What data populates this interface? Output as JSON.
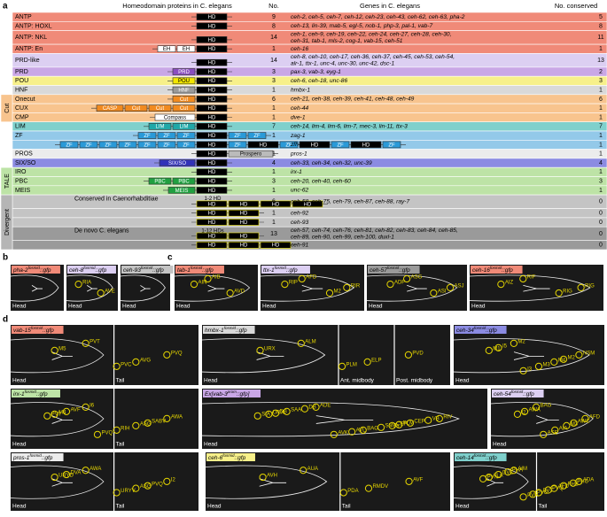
{
  "panel_a": {
    "label": "a",
    "header": {
      "proteins": "Homeodomain proteins in C. elegans",
      "no": "No.",
      "genes": "Genes in C. elegans",
      "conserved": "No. conserved"
    },
    "rows": [
      {
        "name": "ANTP",
        "no": "9",
        "genes": [
          "ceh-2, ceh-5, ceh-7, ceh-12, ceh-23, ceh-43, ceh-62, ceh-63, pha-2"
        ],
        "conserved": "5",
        "domains": [
          "HD"
        ],
        "color": "#f08a78",
        "domain_color": "#000"
      },
      {
        "name": "ANTP: HOXL",
        "no": "8",
        "genes": [
          "ceh-13, lin-39, mab-5, egl-5, nob-1, php-3, pal-1, vab-7"
        ],
        "conserved": "8",
        "domains": [
          "HD"
        ],
        "color": "#f08a78",
        "domain_color": "#000"
      },
      {
        "name": "ANTP: NKL",
        "no": "14",
        "genes": [
          "ceh-1, ceh-9, ceh-19, ceh-22, ceh-24, ceh-27, ceh-28, ceh-30,",
          "ceh-31, tab-1, mls-2, cog-1, vab-15, ceh-51"
        ],
        "conserved": "11",
        "domains": [
          "HD"
        ],
        "color": "#f08a78",
        "domain_color": "#000"
      },
      {
        "name": "ANTP: En",
        "no": "1",
        "genes": [
          "ceh-16"
        ],
        "conserved": "1",
        "domains": [
          "EH",
          "EH",
          "HD"
        ],
        "color": "#f08a78",
        "domain_color": "#fff"
      },
      {
        "name": "PRD-like",
        "no": "14",
        "genes": [
          "ceh-8, ceh-10, ceh-17, ceh-36, ceh-37, ceh-45, ceh-53, ceh-54,",
          "alr-1, ttx-1, unc-4, unc-30, unc-42, dsc-1"
        ],
        "conserved": "13",
        "domains": [
          "HD"
        ],
        "color": "#dccff2",
        "domain_color": "#000"
      },
      {
        "name": "PRD",
        "no": "3",
        "genes": [
          "pax-3, vab-3, eyg-1"
        ],
        "conserved": "2",
        "domains": [
          "PRD",
          "HD"
        ],
        "color": "#c9a7e6",
        "domain_color": "#8a4fc0"
      },
      {
        "name": "POU",
        "no": "3",
        "genes": [
          "ceh-6, ceh-18, unc-86"
        ],
        "conserved": "3",
        "domains": [
          "POU",
          "HD"
        ],
        "color": "#f7f08a",
        "domain_color": "#f2e600"
      },
      {
        "name": "HNF",
        "no": "1",
        "genes": [
          "hmbx-1"
        ],
        "conserved": "1",
        "domains": [
          "HNF",
          "HD"
        ],
        "color": "#d9d9d9",
        "domain_color": "#9a9a9a"
      },
      {
        "group": "Cut",
        "color": "#f8c48e",
        "rows": [
          {
            "name": "Onecut",
            "no": "6",
            "genes": [
              "ceh-21, ceh-38, ceh-39, ceh-41, ceh-48, ceh-49"
            ],
            "conserved": "6",
            "domains": [
              "Cut",
              "HD"
            ],
            "color": "#f8c48e",
            "domain_color": "#f08a20"
          },
          {
            "name": "CUX",
            "no": "1",
            "genes": [
              "ceh-44"
            ],
            "conserved": "1",
            "domains": [
              "CASP",
              "Cut",
              "Cut",
              "Cut",
              "HD"
            ],
            "color": "#f8c48e",
            "domain_color": "#f08a20"
          },
          {
            "name": "CMP",
            "no": "1",
            "genes": [
              "dve-1"
            ],
            "conserved": "1",
            "domains": [
              "Compass",
              "HD"
            ],
            "color": "#f8c48e",
            "domain_color": "#fff"
          }
        ]
      },
      {
        "name": "LIM",
        "no": "7",
        "genes": [
          "ceh-14, lim-4, lim-6, lim-7, mec-3, lin-11, ttx-3"
        ],
        "conserved": "7",
        "domains": [
          "LIM",
          "LIM",
          "HD"
        ],
        "color": "#7fd0cc",
        "domain_color": "#20a8a8"
      },
      {
        "name": "ZF",
        "no": "1",
        "genes": [
          "zag-1"
        ],
        "conserved": "1",
        "domains": [
          "ZF",
          "ZF",
          "ZF",
          "HD",
          "ZF",
          "ZF"
        ],
        "color": "#93c9e9",
        "domain_color": "#2a9ad8"
      },
      {
        "no": "1",
        "genes": [
          "zfh-2"
        ],
        "conserved": "1",
        "domains": [
          "ZF",
          "ZF",
          "ZF",
          "ZF",
          "ZF",
          "ZF",
          "ZF",
          "HD",
          "ZF",
          "HD",
          "ZF",
          "HD",
          "ZF",
          "HD",
          "ZF"
        ],
        "color": "#93c9e9",
        "domain_color": "#2a9ad8"
      },
      {
        "name": "PROS",
        "no": "1",
        "genes": [
          "pros-1"
        ],
        "conserved": "1",
        "domains": [
          "HD",
          "Prospero"
        ],
        "color": "#ececec",
        "domain_color": "#bbb"
      },
      {
        "name": "SIX/SO",
        "no": "4",
        "genes": [
          "ceh-33, ceh-34, ceh-32, unc-39"
        ],
        "conserved": "4",
        "domains": [
          "SIX/SO",
          "HD"
        ],
        "color": "#8b8be2",
        "domain_color": "#3232b8"
      },
      {
        "group": "TALE",
        "color": "#bde3a6",
        "rows": [
          {
            "name": "IRO",
            "no": "1",
            "genes": [
              "irx-1"
            ],
            "conserved": "1",
            "domains": [
              "HD"
            ],
            "color": "#bde3a6",
            "domain_color": "#000"
          },
          {
            "name": "PBC",
            "no": "3",
            "genes": [
              "ceh-20, ceh-40, ceh-60"
            ],
            "conserved": "3",
            "domains": [
              "PBC",
              "PBC",
              "HD"
            ],
            "color": "#bde3a6",
            "domain_color": "#20a040"
          },
          {
            "name": "MEIS",
            "no": "1",
            "genes": [
              "unc-62"
            ],
            "conserved": "1",
            "domains": [
              "MEIS",
              "HD"
            ],
            "color": "#bde3a6",
            "domain_color": "#20a040"
          }
        ]
      },
      {
        "group": "Divergent",
        "color": "#b5b5b5",
        "rows": [
          {
            "name": "Conserved in Caenorhabditiae",
            "note": "1-2 HD",
            "no": "6",
            "genes": [
              "ceh-58, ceh-75, ceh-79, ceh-87, ceh-88, ray-7"
            ],
            "conserved": "0",
            "domains": [
              "HD",
              "HD",
              "HD",
              "HD"
            ],
            "color": "#c4c4c4",
            "domain_color": "#000"
          },
          {
            "no": "1",
            "genes": [
              "ceh-92"
            ],
            "conserved": "0",
            "domains": [
              "HD",
              "HD"
            ],
            "color": "#c4c4c4",
            "domain_color": "#000"
          },
          {
            "no": "1",
            "genes": [
              "ceh-93"
            ],
            "conserved": "0",
            "domains": [
              "HD",
              "HD"
            ],
            "color": "#c4c4c4",
            "domain_color": "#000"
          },
          {
            "name": "De novo C. elegans",
            "note": "1-12 HDs",
            "no": "13",
            "genes": [
              "ceh-57, ceh-74, ceh-76, ceh-81, ceh-82, ceh-83, ceh-84, ceh-85,",
              "ceh-89, ceh-90, ceh-99, ceh-100, duxl-1"
            ],
            "conserved": "0",
            "domains": [
              "HD",
              "HD"
            ],
            "color": "#9a9a9a",
            "domain_color": "#000"
          },
          {
            "no": "1",
            "genes": [
              "ceh-91"
            ],
            "conserved": "0",
            "domains": [
              "HD",
              "HD",
              "HD"
            ],
            "color": "#9a9a9a",
            "domain_color": "#000"
          }
        ]
      }
    ]
  },
  "panels": [
    {
      "label": "b",
      "images": [
        {
          "gene": "pha-2",
          "sup": "fosmid",
          "suffix": "::gfp",
          "color": "#f08a78",
          "labels": [],
          "regions": [
            "Head"
          ]
        },
        {
          "gene": "ceh-8",
          "sup": "fosmid",
          "suffix": "::gfp",
          "color": "#dccff2",
          "labels": [
            "RIA",
            "AVE"
          ],
          "regions": [
            "Head"
          ]
        },
        {
          "gene": "ceh-93",
          "sup": "fosmid",
          "suffix": "::gfp",
          "color": "#c4c4c4",
          "labels": [],
          "regions": [
            "Head"
          ]
        }
      ]
    },
    {
      "label": "c",
      "images": [
        {
          "gene": "tab-1",
          "sup": "fosmid",
          "suffix": "::gfp",
          "color": "#f08a78",
          "labels": [
            "AIN",
            "AVD",
            "AIB"
          ],
          "regions": [
            "Head"
          ]
        },
        {
          "gene": "ttx-1",
          "sup": "fosmid",
          "suffix": "::gfp",
          "color": "#dccff2",
          "labels": [
            "RIP",
            "M2",
            "AFD",
            "RIR"
          ],
          "regions": [
            "Head"
          ]
        },
        {
          "gene": "ceh-57",
          "sup": "fosmid",
          "suffix": "::gfp",
          "color": "#9a9a9a",
          "labels": [
            "ADF",
            "ASI",
            "ASG",
            "ASJ"
          ],
          "regions": [
            "Head"
          ]
        },
        {
          "gene": "ceh-16",
          "sup": "fosmid",
          "suffix": "::gfp",
          "color": "#f08a78",
          "labels": [
            "AIZ",
            "RIG",
            "RIF",
            "RIG"
          ],
          "regions": [
            "Head"
          ]
        }
      ]
    },
    {
      "label": "d",
      "images": [
        {
          "gene": "vab-15",
          "sup": "fosmid",
          "suffix": "::gfp",
          "color": "#f08a78",
          "labels": [
            "M5",
            "AVG",
            "PVT",
            "PVQ",
            "PVC"
          ],
          "regions": [
            "Head",
            "Tail"
          ]
        },
        {
          "gene": "hmbx-1",
          "sup": "fosmid",
          "suffix": "::gfp",
          "color": "#d9d9d9",
          "labels": [
            "URX",
            "ELP",
            "ALM",
            "PVD",
            "PLM"
          ],
          "regions": [
            "Head",
            "Ant. midbody",
            "Post. midbody"
          ]
        },
        {
          "gene": "ceh-34",
          "sup": "fosmid",
          "suffix": "::gfp",
          "color": "#8b8be2",
          "labels": [
            "M1",
            "M4",
            "M2",
            "NSM",
            "M3",
            "I5",
            "M2",
            "I3"
          ],
          "regions": [
            "Head"
          ]
        },
        {
          "gene": "irx-1",
          "sup": "fosmid",
          "suffix": "::gfp",
          "color": "#bde3a6",
          "labels": [
            "M4",
            "ASG",
            "I6",
            "AWA",
            "RIH",
            "AVF",
            "SABV",
            "PVQ",
            "PVT"
          ],
          "regions": [
            "Head",
            "Tail"
          ]
        },
        {
          "gene": "Ex[vab-3",
          "sup": "prom",
          "suffix": "::gfp]",
          "color": "#c9a7e6",
          "labels": [
            "URX",
            "CEP",
            "ADE",
            "RIV",
            "BAG",
            "SAA",
            "CEP",
            "AVK",
            "SIA",
            "SMBs",
            "DB",
            "VB",
            "AVL",
            "DB",
            "PLM"
          ],
          "regions": [
            "Head"
          ]
        },
        {
          "gene": "ceh-54",
          "sup": "fosmid",
          "suffix": "::gfp",
          "color": "#dccff2",
          "labels": [
            "I2",
            "M3",
            "BAG",
            "AFD",
            "AIA",
            "AWA",
            "AWC",
            "ASE"
          ],
          "regions": [
            "Head"
          ]
        },
        {
          "gene": "pros-1",
          "sup": "fosmid",
          "suffix": "::gfp",
          "color": "#ececec",
          "labels": [
            "URYD",
            "ASG",
            "AWA",
            "I2",
            "URYV",
            "DVA",
            "PVQ"
          ],
          "regions": [
            "Head",
            "Tail"
          ]
        },
        {
          "gene": "ceh-6",
          "sup": "fosmid",
          "suffix": "::gfp",
          "color": "#f7f08a",
          "labels": [
            "AVH",
            "RMDV",
            "AUA",
            "AVF",
            "PDA"
          ],
          "regions": [
            "Head",
            "Tail"
          ]
        },
        {
          "gene": "ceh-14",
          "sup": "fosmid",
          "suffix": "::gfp",
          "color": "#7fd0cc",
          "labels": [
            "ALA",
            "AFD",
            "AIM",
            "ADA",
            "PVT",
            "DVC",
            "PHB",
            "PVR",
            "PVN",
            "PVQ",
            "PHA",
            "PHC",
            "PVC"
          ],
          "regions": [
            "Head",
            "Tail"
          ]
        }
      ]
    }
  ]
}
